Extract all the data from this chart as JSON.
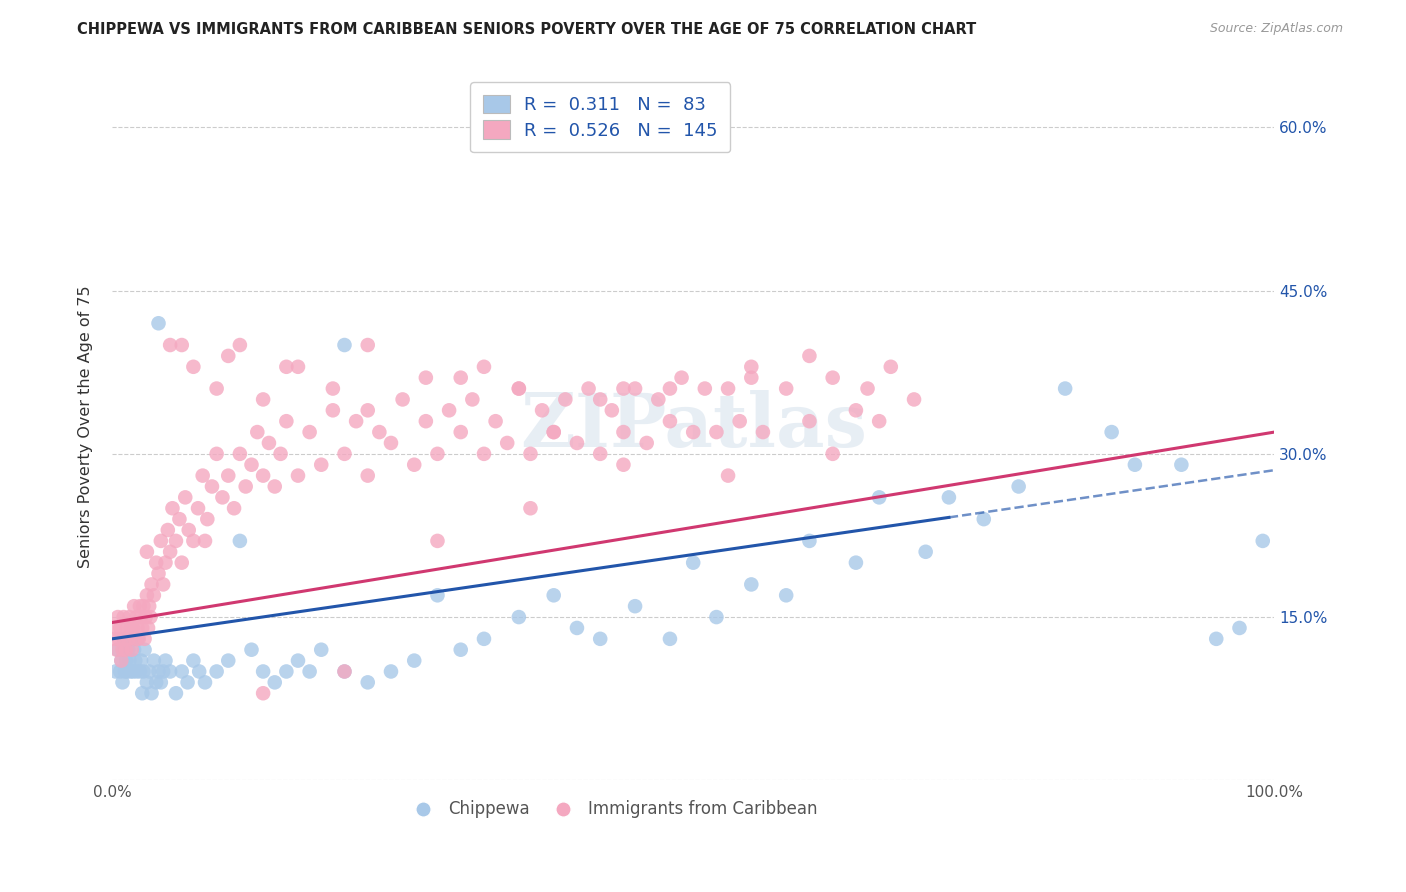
{
  "title": "CHIPPEWA VS IMMIGRANTS FROM CARIBBEAN SENIORS POVERTY OVER THE AGE OF 75 CORRELATION CHART",
  "source": "Source: ZipAtlas.com",
  "ylabel": "Seniors Poverty Over the Age of 75",
  "series": [
    {
      "name": "Chippewa",
      "R": 0.311,
      "N": 83,
      "color": "#a8c8e8",
      "trend_color": "#2255aa",
      "trend_intercept": 0.13,
      "trend_slope": 0.155,
      "trend_solid_end": 0.72,
      "x": [
        0.003,
        0.005,
        0.007,
        0.008,
        0.009,
        0.01,
        0.01,
        0.011,
        0.012,
        0.013,
        0.014,
        0.015,
        0.016,
        0.017,
        0.018,
        0.019,
        0.02,
        0.021,
        0.022,
        0.024,
        0.025,
        0.026,
        0.027,
        0.028,
        0.03,
        0.032,
        0.034,
        0.036,
        0.038,
        0.04,
        0.042,
        0.044,
        0.046,
        0.05,
        0.055,
        0.06,
        0.065,
        0.07,
        0.075,
        0.08,
        0.09,
        0.1,
        0.11,
        0.12,
        0.13,
        0.14,
        0.15,
        0.16,
        0.17,
        0.18,
        0.2,
        0.22,
        0.24,
        0.26,
        0.28,
        0.3,
        0.32,
        0.35,
        0.38,
        0.4,
        0.42,
        0.45,
        0.48,
        0.5,
        0.52,
        0.55,
        0.58,
        0.6,
        0.64,
        0.66,
        0.7,
        0.72,
        0.75,
        0.78,
        0.82,
        0.86,
        0.88,
        0.92,
        0.95,
        0.97,
        0.99,
        0.04,
        0.2
      ],
      "y": [
        0.1,
        0.12,
        0.1,
        0.11,
        0.09,
        0.13,
        0.12,
        0.1,
        0.11,
        0.1,
        0.12,
        0.11,
        0.1,
        0.13,
        0.1,
        0.12,
        0.11,
        0.1,
        0.13,
        0.1,
        0.11,
        0.08,
        0.1,
        0.12,
        0.09,
        0.1,
        0.08,
        0.11,
        0.09,
        0.1,
        0.09,
        0.1,
        0.11,
        0.1,
        0.08,
        0.1,
        0.09,
        0.11,
        0.1,
        0.09,
        0.1,
        0.11,
        0.22,
        0.12,
        0.1,
        0.09,
        0.1,
        0.11,
        0.1,
        0.12,
        0.1,
        0.09,
        0.1,
        0.11,
        0.17,
        0.12,
        0.13,
        0.15,
        0.17,
        0.14,
        0.13,
        0.16,
        0.13,
        0.2,
        0.15,
        0.18,
        0.17,
        0.22,
        0.2,
        0.26,
        0.21,
        0.26,
        0.24,
        0.27,
        0.36,
        0.32,
        0.29,
        0.29,
        0.13,
        0.14,
        0.22,
        0.42,
        0.4
      ]
    },
    {
      "name": "Immigrants from Caribbean",
      "R": 0.526,
      "N": 145,
      "color": "#f4a8c0",
      "trend_color": "#d03870",
      "trend_intercept": 0.145,
      "trend_slope": 0.175,
      "x": [
        0.002,
        0.003,
        0.004,
        0.005,
        0.006,
        0.007,
        0.008,
        0.009,
        0.01,
        0.011,
        0.012,
        0.013,
        0.014,
        0.015,
        0.016,
        0.017,
        0.018,
        0.019,
        0.02,
        0.021,
        0.022,
        0.023,
        0.024,
        0.025,
        0.026,
        0.027,
        0.028,
        0.029,
        0.03,
        0.031,
        0.032,
        0.033,
        0.034,
        0.036,
        0.038,
        0.04,
        0.042,
        0.044,
        0.046,
        0.048,
        0.05,
        0.052,
        0.055,
        0.058,
        0.06,
        0.063,
        0.066,
        0.07,
        0.074,
        0.078,
        0.082,
        0.086,
        0.09,
        0.095,
        0.1,
        0.105,
        0.11,
        0.115,
        0.12,
        0.125,
        0.13,
        0.135,
        0.14,
        0.145,
        0.15,
        0.16,
        0.17,
        0.18,
        0.19,
        0.2,
        0.21,
        0.22,
        0.23,
        0.24,
        0.25,
        0.26,
        0.27,
        0.28,
        0.29,
        0.3,
        0.31,
        0.32,
        0.33,
        0.34,
        0.35,
        0.36,
        0.37,
        0.38,
        0.39,
        0.4,
        0.41,
        0.42,
        0.43,
        0.44,
        0.45,
        0.46,
        0.47,
        0.48,
        0.49,
        0.5,
        0.51,
        0.52,
        0.53,
        0.54,
        0.55,
        0.56,
        0.58,
        0.6,
        0.62,
        0.64,
        0.05,
        0.07,
        0.09,
        0.11,
        0.13,
        0.16,
        0.19,
        0.22,
        0.27,
        0.32,
        0.38,
        0.44,
        0.06,
        0.1,
        0.15,
        0.22,
        0.3,
        0.35,
        0.42,
        0.48,
        0.55,
        0.6,
        0.65,
        0.67,
        0.69,
        0.03,
        0.08,
        0.13,
        0.2,
        0.28,
        0.36,
        0.44,
        0.53,
        0.62,
        0.66
      ],
      "y": [
        0.13,
        0.14,
        0.12,
        0.15,
        0.13,
        0.14,
        0.11,
        0.12,
        0.15,
        0.13,
        0.12,
        0.14,
        0.13,
        0.15,
        0.14,
        0.12,
        0.14,
        0.16,
        0.13,
        0.15,
        0.14,
        0.13,
        0.16,
        0.15,
        0.14,
        0.16,
        0.13,
        0.15,
        0.17,
        0.14,
        0.16,
        0.15,
        0.18,
        0.17,
        0.2,
        0.19,
        0.22,
        0.18,
        0.2,
        0.23,
        0.21,
        0.25,
        0.22,
        0.24,
        0.2,
        0.26,
        0.23,
        0.22,
        0.25,
        0.28,
        0.24,
        0.27,
        0.3,
        0.26,
        0.28,
        0.25,
        0.3,
        0.27,
        0.29,
        0.32,
        0.28,
        0.31,
        0.27,
        0.3,
        0.33,
        0.28,
        0.32,
        0.29,
        0.34,
        0.3,
        0.33,
        0.28,
        0.32,
        0.31,
        0.35,
        0.29,
        0.33,
        0.3,
        0.34,
        0.32,
        0.35,
        0.3,
        0.33,
        0.31,
        0.36,
        0.3,
        0.34,
        0.32,
        0.35,
        0.31,
        0.36,
        0.3,
        0.34,
        0.32,
        0.36,
        0.31,
        0.35,
        0.33,
        0.37,
        0.32,
        0.36,
        0.32,
        0.36,
        0.33,
        0.37,
        0.32,
        0.36,
        0.33,
        0.37,
        0.34,
        0.4,
        0.38,
        0.36,
        0.4,
        0.35,
        0.38,
        0.36,
        0.4,
        0.37,
        0.38,
        0.32,
        0.36,
        0.4,
        0.39,
        0.38,
        0.34,
        0.37,
        0.36,
        0.35,
        0.36,
        0.38,
        0.39,
        0.36,
        0.38,
        0.35,
        0.21,
        0.22,
        0.08,
        0.1,
        0.22,
        0.25,
        0.29,
        0.28,
        0.3,
        0.33
      ]
    }
  ],
  "bg_color": "#ffffff",
  "grid_color": "#cccccc",
  "title_color": "#222222",
  "right_axis_color": "#2255aa",
  "xlim": [
    0.0,
    1.0
  ],
  "ylim": [
    0.0,
    0.65
  ],
  "yticks": [
    0.0,
    0.15,
    0.3,
    0.45,
    0.6
  ],
  "right_ytick_labels": [
    "",
    "15.0%",
    "30.0%",
    "45.0%",
    "60.0%"
  ]
}
